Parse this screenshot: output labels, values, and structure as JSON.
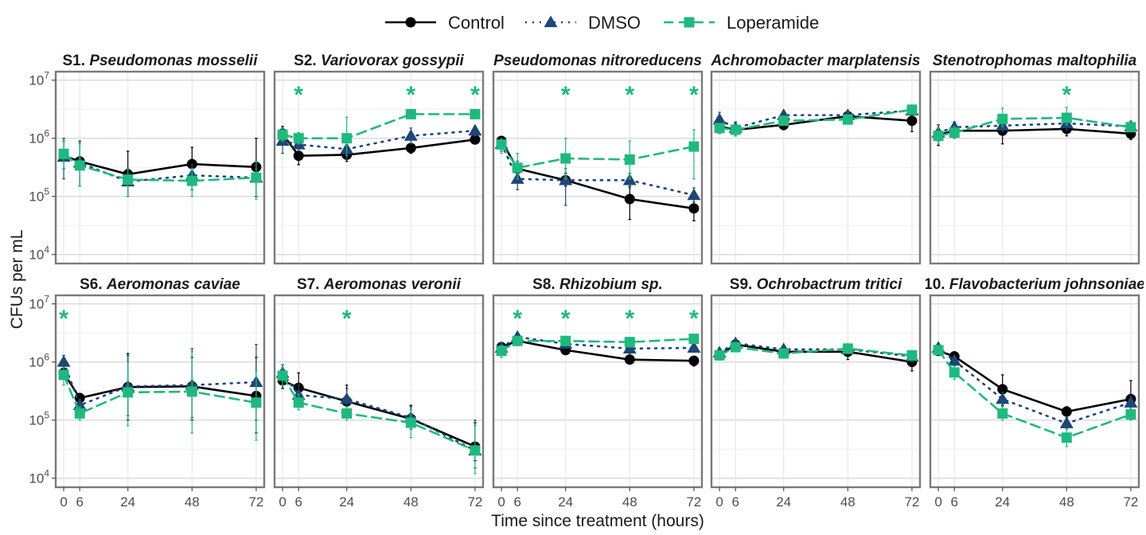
{
  "chart_data": {
    "type": "line",
    "xlabel": "Time since treatment (hours)",
    "ylabel": "CFUs per mL",
    "x_ticks": [
      0,
      6,
      24,
      48,
      72
    ],
    "xlim": [
      -3,
      75
    ],
    "y_scale": "log10",
    "ylim": [
      7000,
      14000000
    ],
    "y_ticks": [
      {
        "value": 10000,
        "base": "10",
        "exp": "4"
      },
      {
        "value": 100000,
        "base": "10",
        "exp": "5"
      },
      {
        "value": 1000000,
        "base": "10",
        "exp": "6"
      },
      {
        "value": 10000000,
        "base": "10",
        "exp": "7"
      }
    ],
    "legend": {
      "position": "top",
      "entries": [
        {
          "name": "Control",
          "color": "#000000",
          "linestyle": "solid",
          "marker": "circle"
        },
        {
          "name": "DMSO",
          "color": "#1e4677",
          "linestyle": "dotted",
          "marker": "triangle"
        },
        {
          "name": "Loperamide",
          "color": "#1fb97f",
          "linestyle": "dashed",
          "marker": "square"
        }
      ]
    },
    "grid": true,
    "x": [
      0,
      6,
      24,
      48,
      72
    ],
    "panels": [
      {
        "prefix": "S1.",
        "name": "Pseudomonas mosselii",
        "stars_at": [],
        "series": [
          {
            "name": "Control",
            "values": [
              500000,
              400000,
              240000,
              360000,
              320000
            ],
            "err_low": [
              300000,
              150000,
              100000,
              200000,
              100000
            ],
            "err_high": [
              900000,
              900000,
              600000,
              700000,
              1000000
            ]
          },
          {
            "name": "DMSO",
            "values": [
              480000,
              380000,
              180000,
              230000,
              210000
            ],
            "err_low": [
              200000,
              150000,
              100000,
              130000,
              100000
            ],
            "err_high": [
              1000000,
              900000,
              300000,
              350000,
              300000
            ]
          },
          {
            "name": "Loperamide",
            "values": [
              540000,
              340000,
              195000,
              185000,
              210000
            ],
            "err_low": [
              300000,
              150000,
              100000,
              100000,
              90000
            ],
            "err_high": [
              900000,
              800000,
              300000,
              300000,
              400000
            ]
          }
        ]
      },
      {
        "prefix": "S2.",
        "name": "Variovorax gossypii",
        "stars_at": [
          6,
          48,
          72
        ],
        "series": [
          {
            "name": "Control",
            "values": [
              1200000,
              500000,
              520000,
              680000,
              950000
            ],
            "err_low": [
              800000,
              350000,
              400000,
              550000,
              800000
            ],
            "err_high": [
              1600000,
              700000,
              650000,
              800000,
              1100000
            ]
          },
          {
            "name": "DMSO",
            "values": [
              900000,
              780000,
              650000,
              1100000,
              1350000
            ],
            "err_low": [
              550000,
              600000,
              450000,
              800000,
              1100000
            ],
            "err_high": [
              1400000,
              1000000,
              900000,
              1500000,
              1600000
            ]
          },
          {
            "name": "Loperamide",
            "values": [
              1150000,
              1000000,
              1000000,
              2600000,
              2600000
            ],
            "err_low": [
              900000,
              800000,
              500000,
              2300000,
              2300000
            ],
            "err_high": [
              1500000,
              1250000,
              2300000,
              2900000,
              2900000
            ]
          }
        ]
      },
      {
        "prefix": "",
        "name": "Pseudomonas nitroreducens",
        "stars_at": [
          24,
          48,
          72
        ],
        "series": [
          {
            "name": "Control",
            "values": [
              900000,
              300000,
              190000,
              90000,
              62000
            ],
            "err_low": [
              700000,
              200000,
              150000,
              40000,
              38000
            ],
            "err_high": [
              1000000,
              400000,
              250000,
              150000,
              90000
            ]
          },
          {
            "name": "DMSO",
            "values": [
              800000,
              200000,
              190000,
              190000,
              105000
            ],
            "err_low": [
              600000,
              130000,
              70000,
              140000,
              80000
            ],
            "err_high": [
              1000000,
              400000,
              300000,
              250000,
              140000
            ]
          },
          {
            "name": "Loperamide",
            "values": [
              780000,
              310000,
              450000,
              430000,
              720000
            ],
            "err_low": [
              550000,
              200000,
              200000,
              200000,
              200000
            ],
            "err_high": [
              950000,
              550000,
              1000000,
              900000,
              1400000
            ]
          }
        ]
      },
      {
        "prefix": "",
        "name": "Achromobacter marplatensis",
        "stars_at": [],
        "series": [
          {
            "name": "Control",
            "values": [
              1600000,
              1400000,
              1700000,
              2400000,
              2000000
            ],
            "err_low": [
              1200000,
              1100000,
              1400000,
              2000000,
              1300000
            ],
            "err_high": [
              2200000,
              1900000,
              2000000,
              2800000,
              2600000
            ]
          },
          {
            "name": "DMSO",
            "values": [
              2100000,
              1500000,
              2500000,
              2500000,
              3000000
            ],
            "err_low": [
              1500000,
              1200000,
              2100000,
              2100000,
              2600000
            ],
            "err_high": [
              2800000,
              1900000,
              2900000,
              2900000,
              3400000
            ]
          },
          {
            "name": "Loperamide",
            "values": [
              1500000,
              1400000,
              2000000,
              2100000,
              3100000
            ],
            "err_low": [
              1200000,
              1100000,
              1700000,
              1800000,
              2700000
            ],
            "err_high": [
              1800000,
              1700000,
              2300000,
              2400000,
              3500000
            ]
          }
        ]
      },
      {
        "prefix": "",
        "name": "Stenotrophomas maltophilia",
        "stars_at": [
          48
        ],
        "series": [
          {
            "name": "Control",
            "values": [
              1150000,
              1350000,
              1350000,
              1450000,
              1200000
            ],
            "err_low": [
              750000,
              1000000,
              800000,
              1100000,
              950000
            ],
            "err_high": [
              1700000,
              1800000,
              1800000,
              1800000,
              1500000
            ]
          },
          {
            "name": "DMSO",
            "values": [
              1250000,
              1550000,
              1650000,
              1800000,
              1600000
            ],
            "err_low": [
              900000,
              1200000,
              1300000,
              1400000,
              1300000
            ],
            "err_high": [
              1700000,
              1900000,
              2000000,
              2200000,
              1900000
            ]
          },
          {
            "name": "Loperamide",
            "values": [
              1100000,
              1250000,
              2150000,
              2250000,
              1550000
            ],
            "err_low": [
              800000,
              1000000,
              1600000,
              1700000,
              1300000
            ],
            "err_high": [
              1500000,
              1600000,
              3300000,
              3400000,
              1800000
            ]
          }
        ]
      },
      {
        "prefix": "S6.",
        "name": "Aeromonas caviae",
        "stars_at": [
          0
        ],
        "series": [
          {
            "name": "Control",
            "values": [
              650000,
              240000,
              370000,
              380000,
              260000
            ],
            "err_low": [
              500000,
              200000,
              100000,
              100000,
              60000
            ],
            "err_high": [
              750000,
              280000,
              1400000,
              1200000,
              1200000
            ]
          },
          {
            "name": "DMSO",
            "values": [
              1000000,
              180000,
              380000,
              400000,
              450000
            ],
            "err_low": [
              700000,
              140000,
              120000,
              110000,
              100000
            ],
            "err_high": [
              1300000,
              230000,
              1300000,
              1700000,
              2000000
            ]
          },
          {
            "name": "Loperamide",
            "values": [
              600000,
              130000,
              300000,
              310000,
              200000
            ],
            "err_low": [
              400000,
              100000,
              80000,
              60000,
              45000
            ],
            "err_high": [
              800000,
              170000,
              1000000,
              1500000,
              700000
            ]
          }
        ]
      },
      {
        "prefix": "S7.",
        "name": "Aeromonas veronii",
        "stars_at": [
          24
        ],
        "series": [
          {
            "name": "Control",
            "values": [
              480000,
              360000,
              210000,
              105000,
              35000
            ],
            "err_low": [
              350000,
              200000,
              130000,
              70000,
              20000
            ],
            "err_high": [
              650000,
              650000,
              400000,
              180000,
              90000
            ]
          },
          {
            "name": "DMSO",
            "values": [
              650000,
              270000,
              230000,
              110000,
              30000
            ],
            "err_low": [
              450000,
              180000,
              150000,
              70000,
              15000
            ],
            "err_high": [
              900000,
              400000,
              350000,
              170000,
              100000
            ]
          },
          {
            "name": "Loperamide",
            "values": [
              580000,
              200000,
              130000,
              90000,
              30000
            ],
            "err_low": [
              400000,
              150000,
              100000,
              50000,
              12000
            ],
            "err_high": [
              800000,
              280000,
              170000,
              150000,
              80000
            ]
          }
        ]
      },
      {
        "prefix": "S8.",
        "name": "Rhizobium sp.",
        "stars_at": [
          6,
          24,
          48,
          72
        ],
        "series": [
          {
            "name": "Control",
            "values": [
              1800000,
              2300000,
              1600000,
              1100000,
              1050000
            ],
            "err_low": [
              1500000,
              2000000,
              1400000,
              1000000,
              850000
            ],
            "err_high": [
              2100000,
              2600000,
              1800000,
              1200000,
              1250000
            ]
          },
          {
            "name": "DMSO",
            "values": [
              1750000,
              2700000,
              2050000,
              1700000,
              1750000
            ],
            "err_low": [
              1400000,
              2300000,
              1800000,
              1400000,
              1500000
            ],
            "err_high": [
              2100000,
              3100000,
              2300000,
              2000000,
              2000000
            ]
          },
          {
            "name": "Loperamide",
            "values": [
              1550000,
              2300000,
              2300000,
              2200000,
              2500000
            ],
            "err_low": [
              1200000,
              2000000,
              1900000,
              1800000,
              2200000
            ],
            "err_high": [
              1900000,
              2600000,
              2700000,
              2600000,
              2800000
            ]
          }
        ]
      },
      {
        "prefix": "S9.",
        "name": "Ochrobactrum tritici",
        "stars_at": [],
        "series": [
          {
            "name": "Control",
            "values": [
              1300000,
              2000000,
              1500000,
              1500000,
              1000000
            ],
            "err_low": [
              1100000,
              1700000,
              1300000,
              1100000,
              700000
            ],
            "err_high": [
              1500000,
              2300000,
              1700000,
              1800000,
              1300000
            ]
          },
          {
            "name": "DMSO",
            "values": [
              1450000,
              2100000,
              1650000,
              1650000,
              1250000
            ],
            "err_low": [
              1200000,
              1800000,
              1400000,
              1400000,
              1000000
            ],
            "err_high": [
              1700000,
              2400000,
              1900000,
              1900000,
              1500000
            ]
          },
          {
            "name": "Loperamide",
            "values": [
              1300000,
              1800000,
              1400000,
              1700000,
              1300000
            ],
            "err_low": [
              1100000,
              1500000,
              1200000,
              1400000,
              1100000
            ],
            "err_high": [
              1500000,
              2100000,
              1600000,
              2000000,
              1500000
            ]
          }
        ]
      },
      {
        "prefix": "10.",
        "name": "Flavobacterium johnsoniae",
        "stars_at": [],
        "series": [
          {
            "name": "Control",
            "values": [
              1550000,
              1250000,
              340000,
              140000,
              230000
            ],
            "err_low": [
              1300000,
              1000000,
              180000,
              110000,
              120000
            ],
            "err_high": [
              1800000,
              1500000,
              600000,
              170000,
              480000
            ]
          },
          {
            "name": "DMSO",
            "values": [
              1750000,
              1050000,
              230000,
              88000,
              200000
            ],
            "err_low": [
              1450000,
              850000,
              170000,
              70000,
              150000
            ],
            "err_high": [
              2000000,
              1250000,
              300000,
              110000,
              260000
            ]
          },
          {
            "name": "Loperamide",
            "values": [
              1600000,
              660000,
              130000,
              50000,
              125000
            ],
            "err_low": [
              1350000,
              500000,
              100000,
              35000,
              100000
            ],
            "err_high": [
              1850000,
              850000,
              170000,
              70000,
              150000
            ]
          }
        ]
      }
    ]
  }
}
